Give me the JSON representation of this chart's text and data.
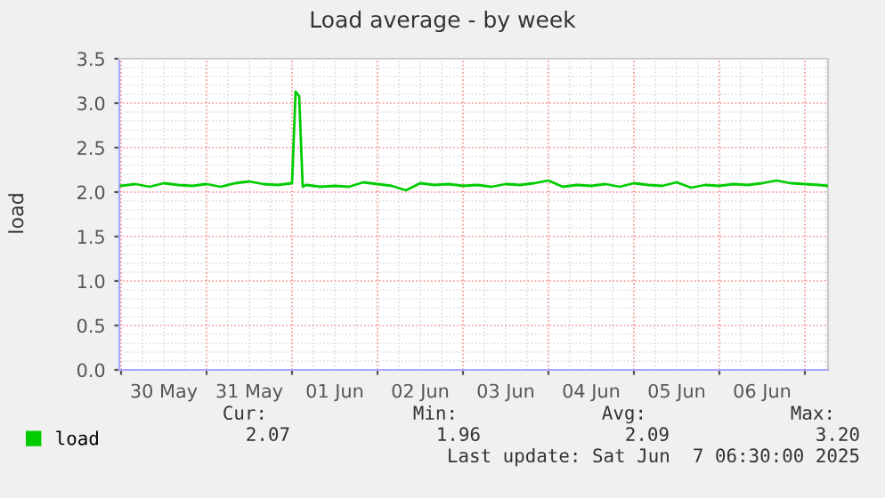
{
  "chart_data": {
    "type": "line",
    "title": "Load average - by week",
    "ylabel": "load",
    "x": [
      "2025-05-30T00:00",
      "2025-05-30T04:00",
      "2025-05-30T08:00",
      "2025-05-30T12:00",
      "2025-05-30T16:00",
      "2025-05-30T20:00",
      "2025-05-31T00:00",
      "2025-05-31T04:00",
      "2025-05-31T08:00",
      "2025-05-31T12:00",
      "2025-05-31T16:00",
      "2025-05-31T20:00",
      "2025-06-01T00:00",
      "2025-06-01T01:00",
      "2025-06-01T02:00",
      "2025-06-01T03:00",
      "2025-06-01T04:00",
      "2025-06-01T08:00",
      "2025-06-01T12:00",
      "2025-06-01T16:00",
      "2025-06-01T20:00",
      "2025-06-02T00:00",
      "2025-06-02T04:00",
      "2025-06-02T08:00",
      "2025-06-02T12:00",
      "2025-06-02T16:00",
      "2025-06-02T20:00",
      "2025-06-03T00:00",
      "2025-06-03T04:00",
      "2025-06-03T08:00",
      "2025-06-03T12:00",
      "2025-06-03T16:00",
      "2025-06-03T20:00",
      "2025-06-04T00:00",
      "2025-06-04T04:00",
      "2025-06-04T08:00",
      "2025-06-04T12:00",
      "2025-06-04T16:00",
      "2025-06-04T20:00",
      "2025-06-05T00:00",
      "2025-06-05T04:00",
      "2025-06-05T08:00",
      "2025-06-05T12:00",
      "2025-06-05T16:00",
      "2025-06-05T20:00",
      "2025-06-06T00:00",
      "2025-06-06T04:00",
      "2025-06-06T08:00",
      "2025-06-06T12:00",
      "2025-06-06T16:00",
      "2025-06-06T20:00",
      "2025-06-07T00:00",
      "2025-06-07T04:00",
      "2025-06-07T06:30"
    ],
    "series": [
      {
        "name": "load",
        "color": "#00cc00",
        "values": [
          2.07,
          2.09,
          2.06,
          2.1,
          2.08,
          2.07,
          2.09,
          2.06,
          2.1,
          2.12,
          2.09,
          2.08,
          2.1,
          3.13,
          3.08,
          2.06,
          2.08,
          2.06,
          2.07,
          2.06,
          2.11,
          2.09,
          2.07,
          2.02,
          2.1,
          2.08,
          2.09,
          2.07,
          2.08,
          2.06,
          2.09,
          2.08,
          2.1,
          2.13,
          2.06,
          2.08,
          2.07,
          2.09,
          2.06,
          2.1,
          2.08,
          2.07,
          2.11,
          2.05,
          2.08,
          2.07,
          2.09,
          2.08,
          2.1,
          2.13,
          2.1,
          2.09,
          2.08,
          2.07
        ]
      }
    ],
    "xlim": [
      "2025-05-29T23:30",
      "2025-06-07T06:30"
    ],
    "xticks": [
      {
        "value": "2025-05-30T00:00",
        "label": null
      },
      {
        "value": "2025-05-30T12:00",
        "label": "30 May"
      },
      {
        "value": "2025-05-31T00:00",
        "label": null
      },
      {
        "value": "2025-05-31T12:00",
        "label": "31 May"
      },
      {
        "value": "2025-06-01T00:00",
        "label": null
      },
      {
        "value": "2025-06-01T12:00",
        "label": "01 Jun"
      },
      {
        "value": "2025-06-02T00:00",
        "label": null
      },
      {
        "value": "2025-06-02T12:00",
        "label": "02 Jun"
      },
      {
        "value": "2025-06-03T00:00",
        "label": null
      },
      {
        "value": "2025-06-03T12:00",
        "label": "03 Jun"
      },
      {
        "value": "2025-06-04T00:00",
        "label": null
      },
      {
        "value": "2025-06-04T12:00",
        "label": "04 Jun"
      },
      {
        "value": "2025-06-05T00:00",
        "label": null
      },
      {
        "value": "2025-06-05T12:00",
        "label": "05 Jun"
      },
      {
        "value": "2025-06-06T00:00",
        "label": null
      },
      {
        "value": "2025-06-06T12:00",
        "label": "06 Jun"
      },
      {
        "value": "2025-06-07T00:00",
        "label": null
      }
    ],
    "ylim": [
      0,
      3.5
    ],
    "yticks": [
      {
        "value": 0,
        "label": "0.0"
      },
      {
        "value": 0.5,
        "label": "0.5"
      },
      {
        "value": 1,
        "label": "1.0"
      },
      {
        "value": 1.5,
        "label": "1.5"
      },
      {
        "value": 2,
        "label": "2.0"
      },
      {
        "value": 2.5,
        "label": "2.5"
      },
      {
        "value": 3,
        "label": "3.0"
      },
      {
        "value": 3.5,
        "label": "3.5"
      }
    ],
    "grid": true,
    "legend": "bottom left",
    "line_style": "solid",
    "marker": "none",
    "annotations": [
      "Cur:",
      "Min:",
      "Avg:",
      "Max:",
      "2.07",
      "1.96",
      "2.09",
      "3.20",
      "Last update: Sat Jun  7 06:30:00 2025"
    ]
  }
}
